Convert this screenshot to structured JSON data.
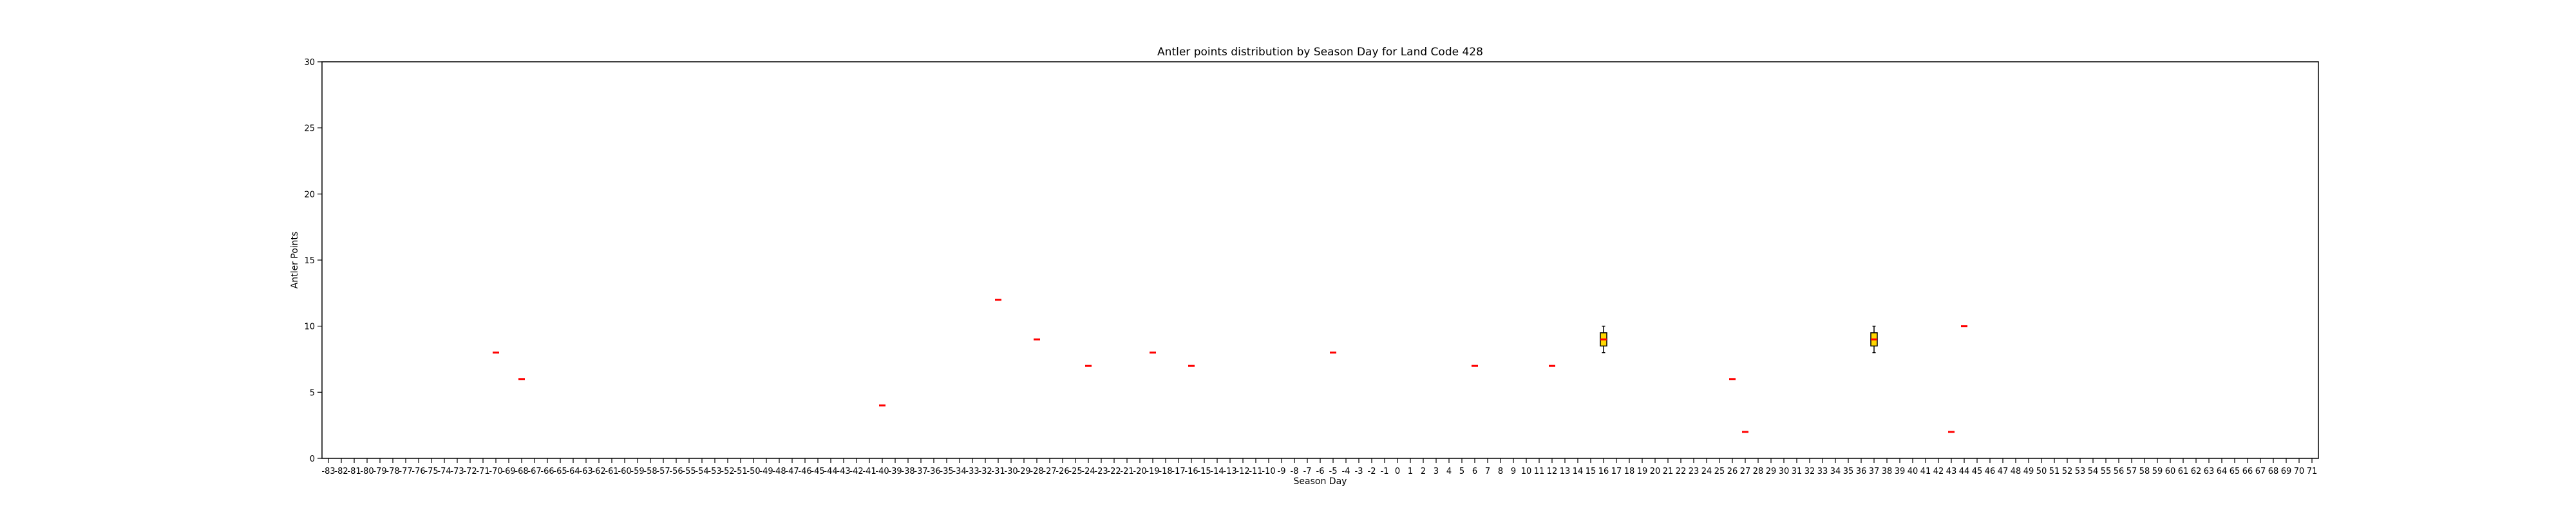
{
  "chart_data": {
    "type": "box",
    "title": "Antler points distribution by Season Day for Land Code 428",
    "xlabel": "Season Day",
    "ylabel": "Antler Points",
    "ylim": [
      0,
      30
    ],
    "yticks": [
      0,
      5,
      10,
      15,
      20,
      25,
      30
    ],
    "grid": false,
    "categories": [
      "-83",
      "-82",
      "-81",
      "-80",
      "-79",
      "-78",
      "-77",
      "-76",
      "-75",
      "-74",
      "-73",
      "-72",
      "-71",
      "-70",
      "-69",
      "-68",
      "-67",
      "-66",
      "-65",
      "-64",
      "-63",
      "-62",
      "-61",
      "-60",
      "-59",
      "-58",
      "-57",
      "-56",
      "-55",
      "-54",
      "-53",
      "-52",
      "-51",
      "-50",
      "-49",
      "-48",
      "-47",
      "-46",
      "-45",
      "-44",
      "-43",
      "-42",
      "-41",
      "-40",
      "-39",
      "-38",
      "-37",
      "-36",
      "-35",
      "-34",
      "-33",
      "-32",
      "-31",
      "-30",
      "-29",
      "-28",
      "-27",
      "-26",
      "-25",
      "-24",
      "-23",
      "-22",
      "-21",
      "-20",
      "-19",
      "-18",
      "-17",
      "-16",
      "-15",
      "-14",
      "-13",
      "-12",
      "-11",
      "-10",
      "-9",
      "-8",
      "-7",
      "-6",
      "-5",
      "-4",
      "-3",
      "-2",
      "-1",
      "0",
      "1",
      "2",
      "3",
      "4",
      "5",
      "6",
      "7",
      "8",
      "9",
      "10",
      "11",
      "12",
      "13",
      "14",
      "15",
      "16",
      "17",
      "18",
      "19",
      "20",
      "21",
      "22",
      "23",
      "24",
      "25",
      "26",
      "27",
      "28",
      "29",
      "30",
      "31",
      "32",
      "33",
      "34",
      "35",
      "36",
      "37",
      "38",
      "39",
      "40",
      "41",
      "42",
      "43",
      "44",
      "45",
      "46",
      "47",
      "48",
      "49",
      "50",
      "51",
      "52",
      "53",
      "54",
      "55",
      "56",
      "57",
      "58",
      "59",
      "60",
      "61",
      "62",
      "63",
      "64",
      "65",
      "66",
      "67",
      "68",
      "69",
      "70",
      "71"
    ],
    "boxes": [
      {
        "day": "-70",
        "min": 8,
        "q1": 8,
        "median": 8,
        "q3": 8,
        "max": 8
      },
      {
        "day": "-68",
        "min": 6,
        "q1": 6,
        "median": 6,
        "q3": 6,
        "max": 6
      },
      {
        "day": "-40",
        "min": 4,
        "q1": 4,
        "median": 4,
        "q3": 4,
        "max": 4
      },
      {
        "day": "-31",
        "min": 12,
        "q1": 12,
        "median": 12,
        "q3": 12,
        "max": 12
      },
      {
        "day": "-28",
        "min": 9,
        "q1": 9,
        "median": 9,
        "q3": 9,
        "max": 9
      },
      {
        "day": "-24",
        "min": 7,
        "q1": 7,
        "median": 7,
        "q3": 7,
        "max": 7
      },
      {
        "day": "-19",
        "min": 8,
        "q1": 8,
        "median": 8,
        "q3": 8,
        "max": 8
      },
      {
        "day": "-16",
        "min": 7,
        "q1": 7,
        "median": 7,
        "q3": 7,
        "max": 7
      },
      {
        "day": "-5",
        "min": 8,
        "q1": 8,
        "median": 8,
        "q3": 8,
        "max": 8
      },
      {
        "day": "6",
        "min": 7,
        "q1": 7,
        "median": 7,
        "q3": 7,
        "max": 7
      },
      {
        "day": "12",
        "min": 7,
        "q1": 7,
        "median": 7,
        "q3": 7,
        "max": 7
      },
      {
        "day": "16",
        "min": 8,
        "q1": 8.5,
        "median": 9,
        "q3": 9.5,
        "max": 10
      },
      {
        "day": "26",
        "min": 6,
        "q1": 6,
        "median": 6,
        "q3": 6,
        "max": 6
      },
      {
        "day": "27",
        "min": 2,
        "q1": 2,
        "median": 2,
        "q3": 2,
        "max": 2
      },
      {
        "day": "37",
        "min": 8,
        "q1": 8.5,
        "median": 9,
        "q3": 9.5,
        "max": 10
      },
      {
        "day": "43",
        "min": 2,
        "q1": 2,
        "median": 2,
        "q3": 2,
        "max": 2
      },
      {
        "day": "44",
        "min": 10,
        "q1": 10,
        "median": 10,
        "q3": 10,
        "max": 10
      }
    ],
    "colors": {
      "box_fill": "#ffd700",
      "median": "#ff0000",
      "whisker": "#000000",
      "axis": "#000000"
    }
  }
}
